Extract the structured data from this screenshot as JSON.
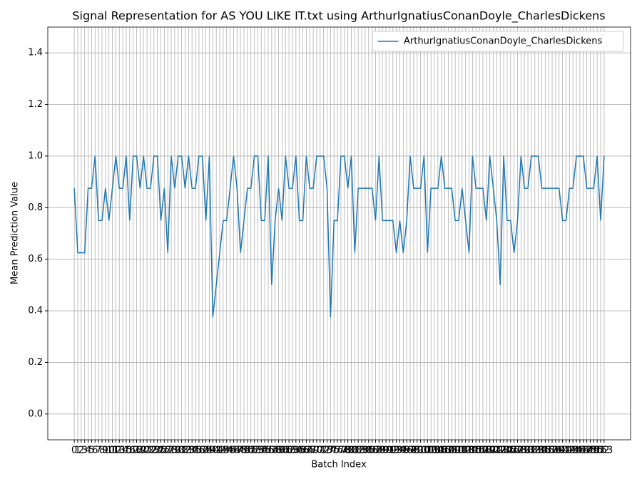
{
  "chart_data": {
    "type": "line",
    "title": "Signal Representation for AS YOU LIKE IT.txt using ArthurIgnatiusConanDoyle_CharlesDickens",
    "xlabel": "Batch Index",
    "ylabel": "Mean Prediction Value",
    "x": [
      0,
      1,
      2,
      3,
      4,
      5,
      6,
      7,
      8,
      9,
      10,
      11,
      12,
      13,
      14,
      15,
      16,
      17,
      18,
      19,
      20,
      21,
      22,
      23,
      24,
      25,
      26,
      27,
      28,
      29,
      30,
      31,
      32,
      33,
      34,
      35,
      36,
      37,
      38,
      39,
      40,
      41,
      42,
      43,
      44,
      45,
      46,
      47,
      48,
      49,
      50,
      51,
      52,
      53,
      54,
      55,
      56,
      57,
      58,
      59,
      60,
      61,
      62,
      63,
      64,
      65,
      66,
      67,
      68,
      69,
      70,
      71,
      72,
      73,
      74,
      75,
      76,
      77,
      78,
      79,
      80,
      81,
      82,
      83,
      84,
      85,
      86,
      87,
      88,
      89,
      90,
      91,
      92,
      93,
      94,
      95,
      96,
      97,
      98,
      99,
      100,
      101,
      102,
      103,
      104,
      105,
      106,
      107,
      108,
      109,
      110,
      111,
      112,
      113,
      114,
      115,
      116,
      117,
      118,
      119,
      120,
      121,
      122,
      123,
      124,
      125,
      126,
      127,
      128,
      129,
      130,
      131,
      132,
      133,
      134,
      135,
      136,
      137,
      138,
      139,
      140,
      141,
      142,
      143,
      144,
      145,
      146,
      147,
      148,
      149,
      150,
      151,
      152,
      153
    ],
    "series": [
      {
        "name": "ArthurIgnatiusConanDoyle_CharlesDickens",
        "color": "#1f77b4",
        "values": [
          0.875,
          0.625,
          0.625,
          0.625,
          0.875,
          0.875,
          1,
          0.75,
          0.75,
          0.875,
          0.75,
          0.875,
          1,
          0.875,
          0.875,
          1,
          0.75,
          1,
          1,
          0.875,
          1,
          0.875,
          0.875,
          1,
          1,
          0.75,
          0.875,
          0.625,
          1,
          0.875,
          1,
          1,
          0.875,
          1,
          0.875,
          0.875,
          1,
          1,
          0.75,
          1,
          0.375,
          0.5,
          0.625,
          0.75,
          0.75,
          0.875,
          1,
          0.875,
          0.625,
          0.75,
          0.875,
          0.875,
          1,
          1,
          0.75,
          0.75,
          1,
          0.5,
          0.75,
          0.875,
          0.75,
          1,
          0.875,
          0.875,
          1,
          0.75,
          0.75,
          1,
          0.875,
          0.875,
          1,
          1,
          1,
          0.875,
          0.375,
          0.75,
          0.75,
          1,
          1,
          0.875,
          1,
          0.625,
          0.875,
          0.875,
          0.875,
          0.875,
          0.875,
          0.75,
          1,
          0.75,
          0.75,
          0.75,
          0.75,
          0.625,
          0.75,
          0.625,
          0.75,
          1,
          0.875,
          0.875,
          0.875,
          1,
          0.625,
          0.875,
          0.875,
          0.875,
          1,
          0.875,
          0.875,
          0.875,
          0.75,
          0.75,
          0.875,
          0.75,
          0.625,
          1,
          0.875,
          0.875,
          0.875,
          0.75,
          1,
          0.875,
          0.75,
          0.5,
          1,
          0.75,
          0.75,
          0.625,
          0.75,
          1,
          0.875,
          0.875,
          1,
          1,
          1,
          0.875,
          0.875,
          0.875,
          0.875,
          0.875,
          0.875,
          0.75,
          0.75,
          0.875,
          0.875,
          1,
          1,
          1,
          0.875,
          0.875,
          0.875,
          1,
          0.75,
          1
        ]
      }
    ],
    "xlim": [
      -7.65,
      160.65
    ],
    "xticks": [
      0,
      1,
      2,
      3,
      4,
      5,
      6,
      7,
      8,
      9,
      10,
      11,
      12,
      13,
      14,
      15,
      16,
      17,
      18,
      19,
      20,
      21,
      22,
      23,
      24,
      25,
      26,
      27,
      28,
      29,
      30,
      31,
      32,
      33,
      34,
      35,
      36,
      37,
      38,
      39,
      40,
      41,
      42,
      43,
      44,
      45,
      46,
      47,
      48,
      49,
      50,
      51,
      52,
      53,
      54,
      55,
      56,
      57,
      58,
      59,
      60,
      61,
      62,
      63,
      64,
      65,
      66,
      67,
      68,
      69,
      70,
      71,
      72,
      73,
      74,
      75,
      76,
      77,
      78,
      79,
      80,
      81,
      82,
      83,
      84,
      85,
      86,
      87,
      88,
      89,
      90,
      91,
      92,
      93,
      94,
      95,
      96,
      97,
      98,
      99,
      100,
      101,
      102,
      103,
      104,
      105,
      106,
      107,
      108,
      109,
      110,
      111,
      112,
      113,
      114,
      115,
      116,
      117,
      118,
      119,
      120,
      121,
      122,
      123,
      124,
      125,
      126,
      127,
      128,
      129,
      130,
      131,
      132,
      133,
      134,
      135,
      136,
      137,
      138,
      139,
      140,
      141,
      142,
      143,
      144,
      145,
      146,
      147,
      148,
      149,
      150,
      151,
      152,
      153
    ],
    "ylim": [
      -0.1,
      1.5
    ],
    "yticks": [
      {
        "value": 0,
        "label": "0.0"
      },
      {
        "value": 0.2,
        "label": "0.2"
      },
      {
        "value": 0.4,
        "label": "0.4"
      },
      {
        "value": 0.6,
        "label": "0.6"
      },
      {
        "value": 0.8,
        "label": "0.8"
      },
      {
        "value": 1,
        "label": "1.0"
      },
      {
        "value": 1.2,
        "label": "1.2"
      },
      {
        "value": 1.4,
        "label": "1.4"
      }
    ],
    "grid": true,
    "legend": "upper right"
  }
}
